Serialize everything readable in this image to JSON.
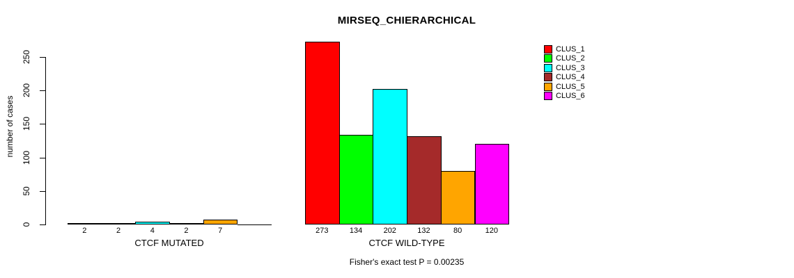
{
  "title": "MIRSEQ_CHIERARCHICAL",
  "chart_data": {
    "type": "bar",
    "title": "MIRSEQ_CHIERARCHICAL",
    "xlabel": "",
    "ylabel": "number of cases",
    "ylim": [
      0,
      250
    ],
    "yticks": [
      0,
      50,
      100,
      150,
      200,
      250
    ],
    "grid": false,
    "legend_position": "right-inside",
    "clusters": [
      {
        "name": "CLUS_1",
        "color": "#FF0000"
      },
      {
        "name": "CLUS_2",
        "color": "#00FF00"
      },
      {
        "name": "CLUS_3",
        "color": "#00FFFF"
      },
      {
        "name": "CLUS_4",
        "color": "#A52A2A"
      },
      {
        "name": "CLUS_5",
        "color": "#FFA500"
      },
      {
        "name": "CLUS_6",
        "color": "#FF00FF"
      }
    ],
    "groups": [
      {
        "label": "CTCF MUTATED",
        "values": [
          2,
          2,
          4,
          2,
          7,
          0
        ],
        "bar_labels": [
          "2",
          "2",
          "4",
          "2",
          "7",
          ""
        ]
      },
      {
        "label": "CTCF WILD-TYPE",
        "values": [
          273,
          134,
          202,
          132,
          80,
          120
        ],
        "bar_labels": [
          "273",
          "134",
          "202",
          "132",
          "80",
          "120"
        ]
      }
    ],
    "annotation": "Fisher's exact test P = 0.00235"
  }
}
